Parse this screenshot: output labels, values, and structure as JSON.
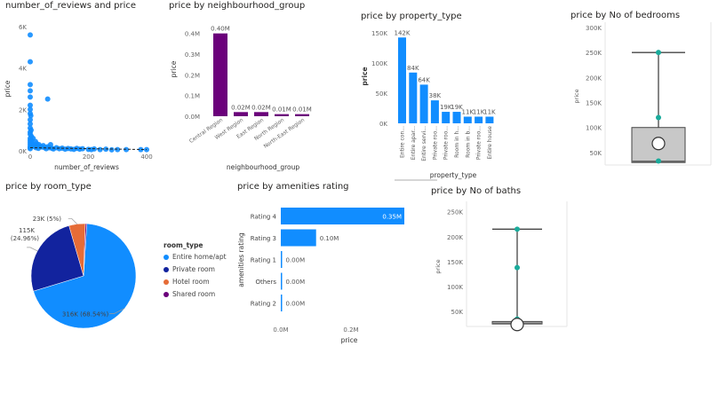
{
  "charts": {
    "scatter": {
      "title": "number_of_reviews and price",
      "xlabel": "number_of_reviews",
      "ylabel": "price",
      "xticks": [
        "0",
        "200",
        "400"
      ],
      "yticks": [
        "0K",
        "2K",
        "4K",
        "6K"
      ]
    },
    "neighbourhood": {
      "title": "price by neighbourhood_group",
      "xlabel": "neighbourhood_group",
      "ylabel": "price",
      "yticks": [
        "0.0M",
        "0.1M",
        "0.2M",
        "0.3M",
        "0.4M"
      ],
      "data_labels": [
        "0.40M",
        "0.02M",
        "0.02M",
        "0.01M",
        "0.01M"
      ]
    },
    "property": {
      "title": "price by property_type",
      "xlabel": "property_type",
      "ylabel": "price",
      "yticks": [
        "0K",
        "50K",
        "100K",
        "150K"
      ],
      "data_labels": [
        "142K",
        "84K",
        "64K",
        "38K",
        "19K",
        "19K",
        "11K",
        "11K",
        "11K"
      ]
    },
    "bedrooms": {
      "title": "price by No of bedrooms",
      "ylabel": "price",
      "yticks": [
        "50K",
        "100K",
        "150K",
        "200K",
        "250K",
        "300K"
      ]
    },
    "roomtype": {
      "title": "price by room_type",
      "legend_title": "room_type",
      "slice_labels": [
        "316K (68.54%)",
        "115K",
        "(24.96%)",
        "23K (5%)"
      ]
    },
    "amenities": {
      "title": "price by amenities rating",
      "xlabel": "price",
      "ylabel": "amenities rating",
      "xticks": [
        "0.0M",
        "0.2M"
      ],
      "data_labels": [
        "0.35M",
        "0.10M",
        "0.00M",
        "0.00M",
        "0.00M"
      ]
    },
    "baths": {
      "title": "price by No of baths",
      "ylabel": "price",
      "yticks": [
        "50K",
        "100K",
        "150K",
        "200K",
        "250K"
      ]
    }
  },
  "chart_data": [
    {
      "id": "scatter",
      "type": "scatter",
      "title": "number_of_reviews and price",
      "xlabel": "number_of_reviews",
      "ylabel": "price",
      "xlim": [
        0,
        400
      ],
      "ylim": [
        0,
        6000
      ],
      "color": "#118DFF",
      "points": [
        [
          0,
          5600
        ],
        [
          0,
          4300
        ],
        [
          0,
          3200
        ],
        [
          0,
          2900
        ],
        [
          0,
          2600
        ],
        [
          0,
          2200
        ],
        [
          0,
          2000
        ],
        [
          0,
          1800
        ],
        [
          0,
          1500
        ],
        [
          0,
          1300
        ],
        [
          0,
          1100
        ],
        [
          0,
          900
        ],
        [
          0,
          800
        ],
        [
          0,
          600
        ],
        [
          0,
          500
        ],
        [
          0,
          400
        ],
        [
          0,
          300
        ],
        [
          0,
          200
        ],
        [
          0,
          150
        ],
        [
          0,
          100
        ],
        [
          2,
          1700
        ],
        [
          3,
          1000
        ],
        [
          4,
          700
        ],
        [
          5,
          500
        ],
        [
          6,
          350
        ],
        [
          8,
          250
        ],
        [
          10,
          600
        ],
        [
          12,
          300
        ],
        [
          15,
          200
        ],
        [
          18,
          450
        ],
        [
          20,
          150
        ],
        [
          22,
          350
        ],
        [
          25,
          250
        ],
        [
          28,
          120
        ],
        [
          30,
          300
        ],
        [
          35,
          200
        ],
        [
          40,
          180
        ],
        [
          45,
          250
        ],
        [
          50,
          150
        ],
        [
          55,
          100
        ],
        [
          60,
          200
        ],
        [
          65,
          150
        ],
        [
          70,
          300
        ],
        [
          75,
          120
        ],
        [
          80,
          90
        ],
        [
          90,
          150
        ],
        [
          100,
          100
        ],
        [
          110,
          130
        ],
        [
          120,
          80
        ],
        [
          130,
          110
        ],
        [
          140,
          90
        ],
        [
          150,
          70
        ],
        [
          160,
          120
        ],
        [
          170,
          80
        ],
        [
          180,
          100
        ],
        [
          200,
          70
        ],
        [
          210,
          60
        ],
        [
          220,
          90
        ],
        [
          240,
          60
        ],
        [
          260,
          80
        ],
        [
          280,
          50
        ],
        [
          300,
          60
        ],
        [
          330,
          60
        ],
        [
          380,
          60
        ],
        [
          400,
          60
        ],
        [
          60,
          2500
        ]
      ]
    },
    {
      "id": "neighbourhood",
      "type": "bar",
      "title": "price by neighbourhood_group",
      "xlabel": "neighbourhood_group",
      "ylabel": "price",
      "ylim": [
        0,
        0.45
      ],
      "color": "#6B007B",
      "categories": [
        "Central Region",
        "West Region",
        "East Region",
        "North Region",
        "North-East Region"
      ],
      "values": [
        0.4,
        0.02,
        0.02,
        0.01,
        0.01
      ]
    },
    {
      "id": "property",
      "type": "bar",
      "title": "price by property_type",
      "xlabel": "property_type",
      "ylabel": "price",
      "ylim": [
        0,
        160
      ],
      "color": "#118DFF",
      "categories": [
        "Entire con...",
        "Entire apar...",
        "Entire servi...",
        "Private roo...",
        "Private roo...",
        "Room in h...",
        "Room in b...",
        "Private roo...",
        "Entire house"
      ],
      "values": [
        142,
        84,
        64,
        38,
        19,
        19,
        11,
        11,
        11
      ]
    },
    {
      "id": "bedrooms",
      "type": "box",
      "title": "price by No of bedrooms",
      "ylabel": "price",
      "ylim": [
        25,
        300
      ],
      "box_color": "#C8C8C8",
      "whisker_low": 30,
      "q1": 30,
      "median": 32,
      "q3": 100,
      "whisker_high": 250,
      "mean": 68,
      "points": [
        250,
        120,
        33
      ]
    },
    {
      "id": "roomtype",
      "type": "pie",
      "title": "price by room_type",
      "categories": [
        "Entire home/apt",
        "Private room",
        "Hotel room",
        "Shared room"
      ],
      "values": [
        316,
        115,
        23,
        2
      ],
      "percents": [
        68.54,
        24.96,
        5,
        0.5
      ],
      "colors": [
        "#118DFF",
        "#12239E",
        "#E66C37",
        "#6B007B"
      ],
      "legend": "right"
    },
    {
      "id": "amenities",
      "type": "bar",
      "orientation": "horizontal",
      "title": "price by amenities rating",
      "xlabel": "price",
      "ylabel": "amenities rating",
      "xlim": [
        0,
        0.35
      ],
      "color": "#118DFF",
      "categories": [
        "Rating 4",
        "Rating 3",
        "Rating 1",
        "Others",
        "Rating 2"
      ],
      "values": [
        0.35,
        0.1,
        0.0,
        0.0,
        0.0
      ]
    },
    {
      "id": "baths",
      "type": "box",
      "title": "price by No of baths",
      "ylabel": "price",
      "ylim": [
        20,
        260
      ],
      "box_color": "#C8C8C8",
      "whisker_low": 25,
      "q1": 25,
      "median": 26,
      "q3": 30,
      "whisker_high": 215,
      "mean": 24,
      "points": [
        215,
        138,
        35,
        20
      ]
    }
  ]
}
